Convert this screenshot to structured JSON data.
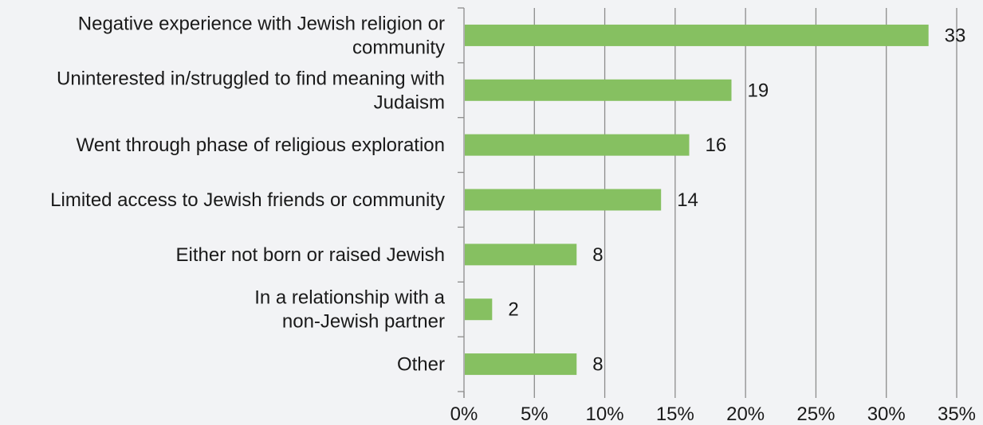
{
  "chart_data": {
    "type": "bar",
    "orientation": "horizontal",
    "title": "",
    "xlabel": "",
    "ylabel": "",
    "categories": [
      [
        "Negative experience with Jewish religion or",
        "community"
      ],
      [
        "Uninterested in/struggled to find meaning with",
        "Judaism"
      ],
      [
        "Went through phase of religious exploration"
      ],
      [
        "Limited access to Jewish friends or community"
      ],
      [
        "Either not born or raised Jewish"
      ],
      [
        "In a relationship with a",
        "non-Jewish partner"
      ],
      [
        "Other"
      ]
    ],
    "values": [
      33,
      19,
      16,
      14,
      8,
      2,
      8
    ],
    "data_labels": [
      "33",
      "19",
      "16",
      "14",
      "8",
      "2",
      "8"
    ],
    "xlim": [
      0,
      35
    ],
    "ticks": [
      0,
      5,
      10,
      15,
      20,
      25,
      30,
      35
    ],
    "tick_labels": [
      "0%",
      "5%",
      "10%",
      "15%",
      "20%",
      "25%",
      "30%",
      "35%"
    ],
    "grid": "vertical",
    "legend": "none",
    "colors": {
      "bar": "#86c061",
      "grid": "#8c8c8c",
      "text": "#1a1a1a",
      "background": "#f2f3f5"
    }
  }
}
